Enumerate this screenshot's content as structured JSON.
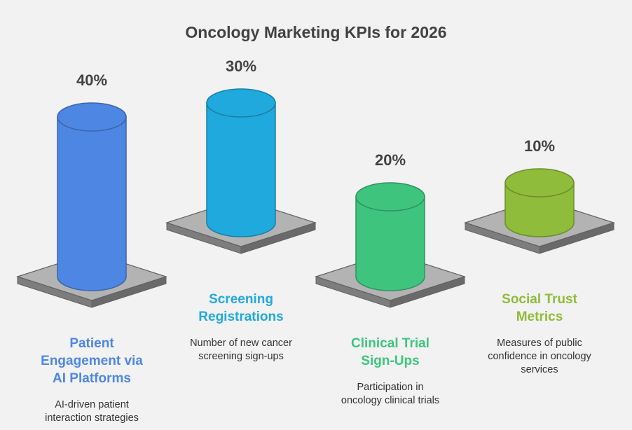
{
  "chart_data": {
    "type": "bar",
    "title": "Oncology Marketing KPIs for 2026",
    "unit": "%",
    "categories": [
      "Patient Engagement via AI Platforms",
      "Screening Registrations",
      "Clinical Trial Sign-Ups",
      "Social Trust Metrics"
    ],
    "values": [
      40,
      30,
      20,
      10
    ],
    "value_labels": [
      "40%",
      "30%",
      "20%",
      "10%"
    ],
    "items": [
      {
        "title_lines": [
          "Patient",
          "Engagement via",
          "AI Platforms"
        ],
        "desc_lines": [
          "AI-driven patient",
          "interaction strategies"
        ],
        "color": "#4e86e4"
      },
      {
        "title_lines": [
          "Screening",
          "Registrations"
        ],
        "desc_lines": [
          "Number of new cancer",
          "screening sign-ups"
        ],
        "color": "#20a9dc"
      },
      {
        "title_lines": [
          "Clinical Trial",
          "Sign-Ups"
        ],
        "desc_lines": [
          "Participation in",
          "oncology clinical trials"
        ],
        "color": "#3fc47e"
      },
      {
        "title_lines": [
          "Social Trust",
          "Metrics"
        ],
        "desc_lines": [
          "Measures of public",
          "confidence in oncology",
          "services"
        ],
        "color": "#8fbc3a"
      }
    ],
    "colors": {
      "background": "#f2f2f2",
      "text": "#424242",
      "platform_top": "#b3b3b3",
      "platform_side": "#7d7d7d",
      "platform_outline": "#616161"
    }
  }
}
